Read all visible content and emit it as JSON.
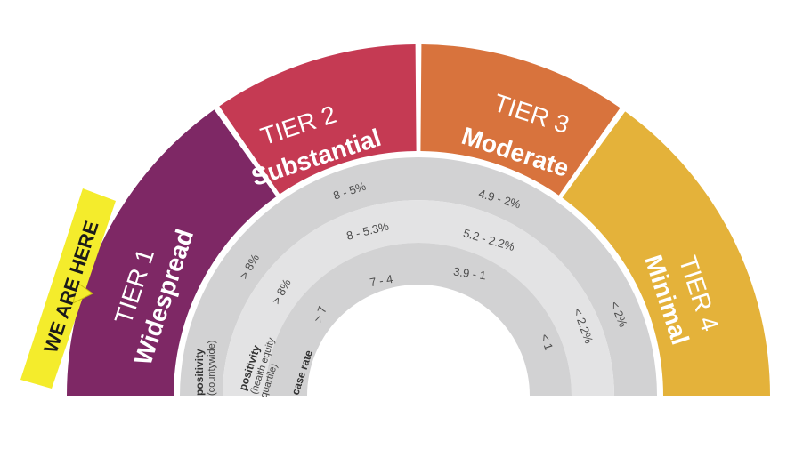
{
  "tiers": [
    {
      "number": "TIER 1",
      "name": "Widespread",
      "color": "#7e2865"
    },
    {
      "number": "TIER 2",
      "name": "Substantial",
      "color": "#c53a53"
    },
    {
      "number": "TIER 3",
      "name": "Moderate",
      "color": "#d8733d"
    },
    {
      "number": "TIER 4",
      "name": "Minimal",
      "color": "#e4b23a"
    }
  ],
  "marker": {
    "label": "WE ARE HERE",
    "color": "#f4ec2c"
  },
  "rows": {
    "positivity_county": {
      "title": "positivity",
      "sub": "(countywide)"
    },
    "positivity_equity": {
      "title": "positivity",
      "sub1": "(health equity",
      "sub2": "quartile)"
    },
    "case_rate": {
      "title": "case rate"
    }
  },
  "values": {
    "outer": [
      "> 8%",
      "8 - 5%",
      "4.9 - 2%",
      "< 2%"
    ],
    "middle": [
      "> 8%",
      "8 - 5.3%",
      "5.2 - 2.2%",
      "< 2.2%"
    ],
    "inner": [
      "> 7",
      "7 - 4",
      "3.9 - 1",
      "< 1"
    ]
  },
  "band_colors": {
    "outer": "#d2d2d3",
    "middle": "#e3e3e4",
    "inner": "#d2d2d3"
  }
}
